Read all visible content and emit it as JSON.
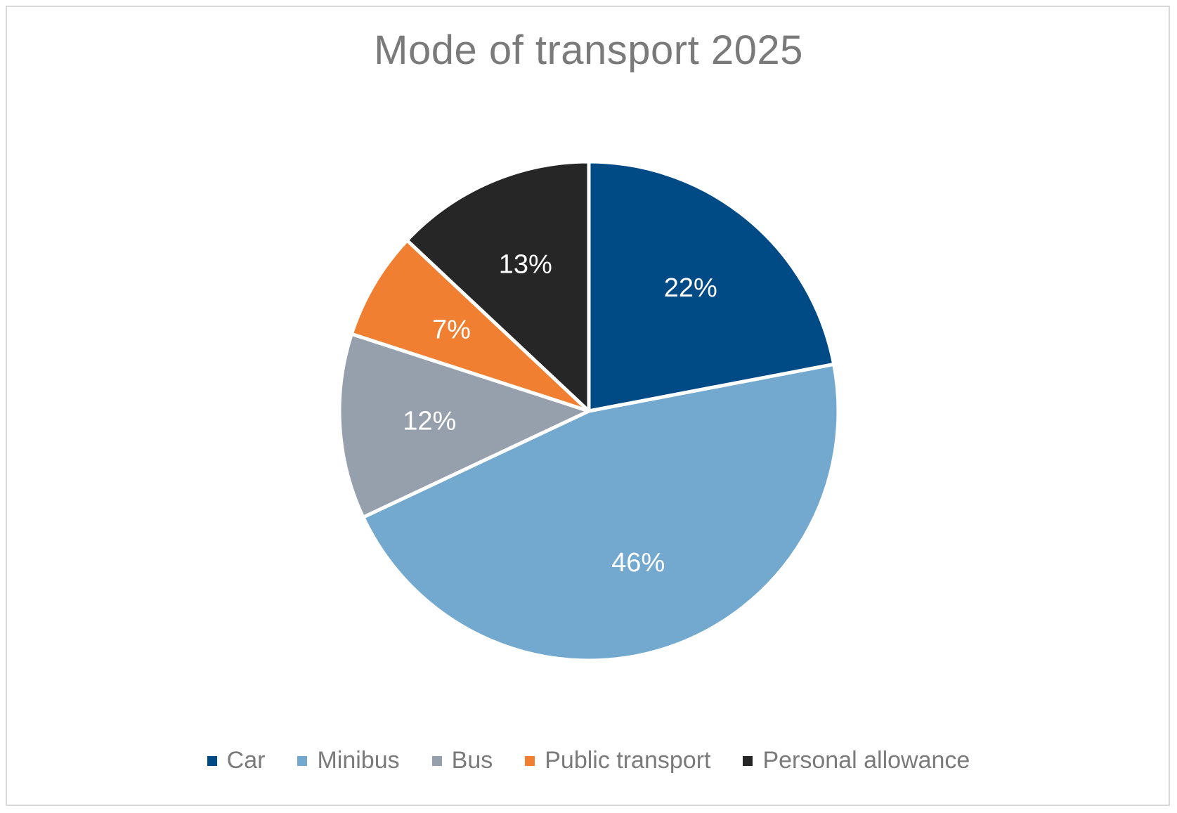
{
  "chart_data": {
    "type": "pie",
    "title": "Mode of transport 2025",
    "legend_position": "bottom",
    "slices": [
      {
        "label": "Car",
        "value": 22,
        "display": "22%",
        "color": "#004a86"
      },
      {
        "label": "Minibus",
        "value": 46,
        "display": "46%",
        "color": "#74a9cf"
      },
      {
        "label": "Bus",
        "value": 12,
        "display": "12%",
        "color": "#969fac"
      },
      {
        "label": "Public transport",
        "value": 7,
        "display": "7%",
        "color": "#f07f32"
      },
      {
        "label": "Personal allowance",
        "value": 13,
        "display": "13%",
        "color": "#262626"
      }
    ],
    "label_color": "#ffffff",
    "text_color": "#7a7a7a"
  }
}
